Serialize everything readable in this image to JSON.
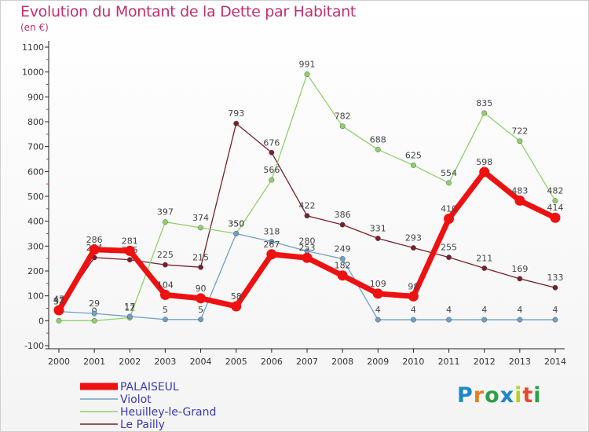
{
  "title": "Evolution du Montant de la Dette par Habitant",
  "unit": "(en €)",
  "logo": "Proxiti",
  "chart_data": {
    "type": "line",
    "title": "Evolution du Montant de la Dette par Habitant",
    "ylabel": "(en €)",
    "xlabel": "",
    "ylim": [
      -100,
      1100
    ],
    "yticks": [
      -100,
      0,
      100,
      200,
      300,
      400,
      500,
      600,
      700,
      800,
      900,
      1000,
      1100
    ],
    "x": [
      "2000",
      "2001",
      "2002",
      "2003",
      "2004",
      "2005",
      "2006",
      "2007",
      "2008",
      "2009",
      "2010",
      "2011",
      "2012",
      "2013",
      "2014"
    ],
    "grid": false,
    "legend": "bottom-left",
    "series": [
      {
        "name": "Le Pailly",
        "color": "#7a1f2b",
        "values": [
          47,
          254,
          245,
          225,
          215,
          793,
          676,
          422,
          386,
          331,
          293,
          255,
          211,
          169,
          133
        ]
      },
      {
        "name": "Heuilley-le-Grand",
        "color": "#8fd16a",
        "values": [
          0,
          0,
          12,
          397,
          374,
          350,
          566,
          991,
          782,
          688,
          625,
          554,
          835,
          722,
          482
        ]
      },
      {
        "name": "Violot",
        "color": "#6ea0c8",
        "values": [
          37,
          29,
          17,
          5,
          5,
          350,
          318,
          280,
          249,
          4,
          4,
          4,
          4,
          4,
          4
        ]
      },
      {
        "name": "PALAISEUL",
        "color": "#ee1111",
        "values": [
          42,
          286,
          281,
          104,
          90,
          58,
          267,
          253,
          182,
          109,
          98,
          410,
          598,
          483,
          414
        ]
      }
    ],
    "legend_order": [
      "PALAISEUL",
      "Violot",
      "Heuilley-le-Grand",
      "Le Pailly"
    ]
  }
}
